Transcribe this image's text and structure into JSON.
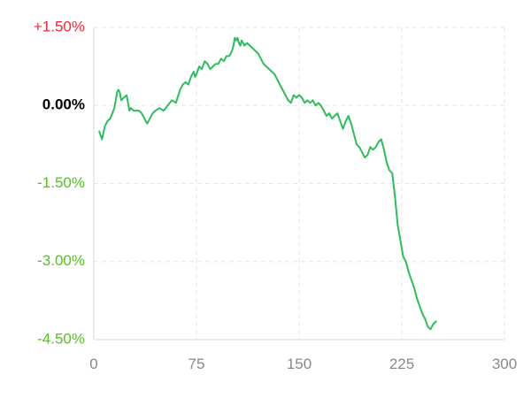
{
  "chart_data": {
    "type": "line",
    "xlim": [
      0,
      300
    ],
    "ylim": [
      -4.5,
      1.5
    ],
    "x_ticks": [
      {
        "value": 0,
        "label": "0"
      },
      {
        "value": 75,
        "label": "75"
      },
      {
        "value": 150,
        "label": "150"
      },
      {
        "value": 225,
        "label": "225"
      },
      {
        "value": 300,
        "label": "300"
      }
    ],
    "y_ticks": [
      {
        "value": 1.5,
        "label": "+1.50%",
        "color": "#f0283c"
      },
      {
        "value": 0,
        "label": "0.00%",
        "color": "#000000"
      },
      {
        "value": -1.5,
        "label": "-1.50%",
        "color": "#52c41a"
      },
      {
        "value": -3.0,
        "label": "-3.00%",
        "color": "#52c41a"
      },
      {
        "value": -4.5,
        "label": "-4.50%",
        "color": "#52c41a"
      }
    ],
    "grid": true,
    "series": [
      {
        "color": "#2bbf5c",
        "x": [
          4,
          6,
          8,
          10,
          12,
          15,
          17,
          18,
          19,
          20,
          22,
          24,
          25,
          26,
          27,
          29,
          31,
          33,
          35,
          37,
          39,
          41,
          43,
          45,
          48,
          51,
          54,
          57,
          60,
          63,
          65,
          67,
          69,
          71,
          73,
          74,
          75,
          77,
          79,
          81,
          83,
          85,
          87,
          89,
          91,
          93,
          95,
          97,
          99,
          101,
          102,
          103,
          104,
          105,
          106,
          107,
          108,
          109,
          110,
          112,
          114,
          116,
          118,
          120,
          122,
          124,
          126,
          128,
          130,
          132,
          134,
          136,
          138,
          140,
          142,
          144,
          146,
          148,
          150,
          152,
          154,
          156,
          158,
          160,
          162,
          164,
          166,
          168,
          170,
          172,
          174,
          176,
          178,
          180,
          182,
          184,
          186,
          188,
          190,
          192,
          194,
          196,
          198,
          200,
          202,
          204,
          206,
          208,
          210,
          212,
          214,
          216,
          218,
          220,
          222,
          224,
          226,
          228,
          230,
          232,
          234,
          236,
          238,
          240,
          242,
          244,
          246,
          248,
          250
        ],
        "y": [
          -0.5,
          -0.65,
          -0.4,
          -0.3,
          -0.25,
          -0.05,
          0.25,
          0.3,
          0.25,
          0.1,
          0.15,
          0.2,
          0.05,
          -0.1,
          -0.05,
          -0.1,
          -0.1,
          -0.1,
          -0.15,
          -0.25,
          -0.35,
          -0.25,
          -0.15,
          -0.1,
          -0.05,
          -0.1,
          0.0,
          0.1,
          0.05,
          0.3,
          0.4,
          0.45,
          0.4,
          0.55,
          0.65,
          0.55,
          0.6,
          0.75,
          0.7,
          0.85,
          0.8,
          0.7,
          0.75,
          0.8,
          0.8,
          0.9,
          0.85,
          0.95,
          0.95,
          1.05,
          1.15,
          1.3,
          1.25,
          1.3,
          1.2,
          1.15,
          1.25,
          1.2,
          1.15,
          1.2,
          1.15,
          1.1,
          1.05,
          1.0,
          0.9,
          0.8,
          0.75,
          0.7,
          0.65,
          0.6,
          0.5,
          0.4,
          0.3,
          0.2,
          0.1,
          0.05,
          0.2,
          0.15,
          0.2,
          0.15,
          0.05,
          0.1,
          0.05,
          0.1,
          0.0,
          0.05,
          0.0,
          -0.1,
          -0.2,
          -0.15,
          -0.25,
          -0.2,
          -0.15,
          -0.3,
          -0.45,
          -0.3,
          -0.2,
          -0.35,
          -0.55,
          -0.75,
          -0.8,
          -0.9,
          -1.0,
          -0.95,
          -0.8,
          -0.85,
          -0.8,
          -0.7,
          -0.65,
          -0.85,
          -1.1,
          -1.25,
          -1.3,
          -1.75,
          -2.3,
          -2.6,
          -2.9,
          -3.0,
          -3.2,
          -3.35,
          -3.5,
          -3.7,
          -3.85,
          -4.0,
          -4.1,
          -4.25,
          -4.3,
          -4.2,
          -4.15
        ]
      }
    ]
  }
}
